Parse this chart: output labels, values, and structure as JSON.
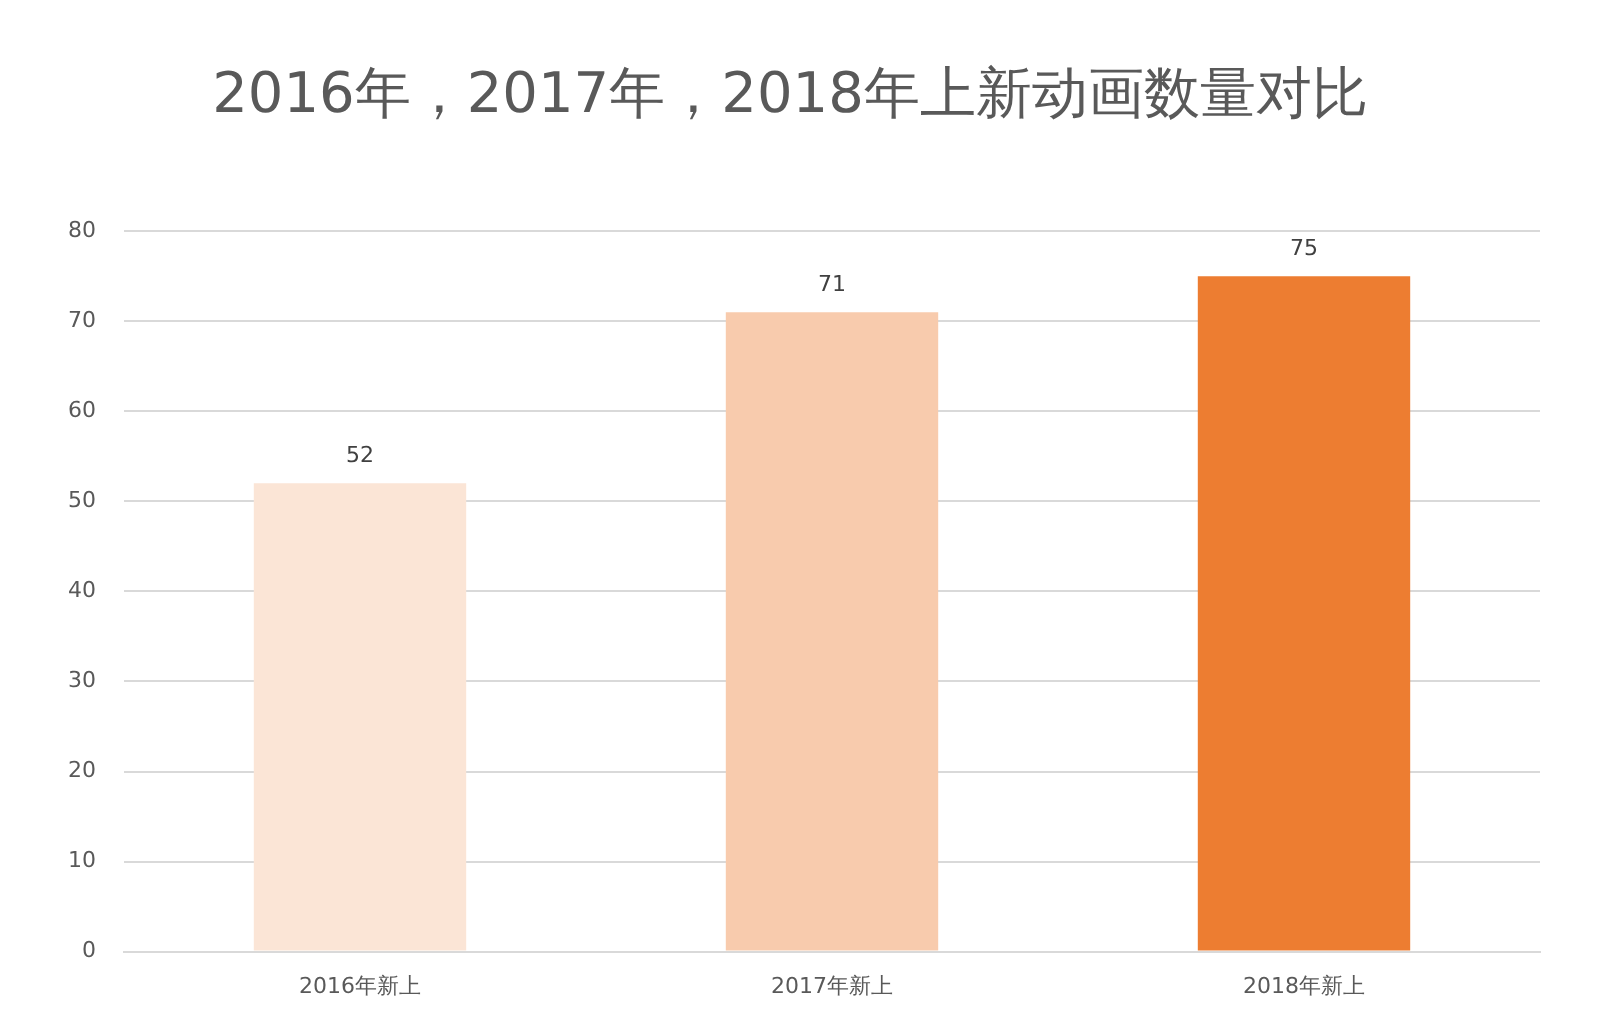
{
  "chart_data": {
    "type": "bar",
    "title": "2016年，2017年，2018年上新动画数量对比",
    "categories": [
      "2016年新上",
      "2017年新上",
      "2018年新上"
    ],
    "values": [
      52,
      71,
      75
    ],
    "colors": [
      "#fbe5d6",
      "#f8cbad",
      "#ed7d31"
    ],
    "ylim": [
      0,
      80
    ],
    "yticks": [
      0,
      10,
      20,
      30,
      40,
      50,
      60,
      70,
      80
    ],
    "grid": "y",
    "legend": false,
    "data_labels": true
  }
}
